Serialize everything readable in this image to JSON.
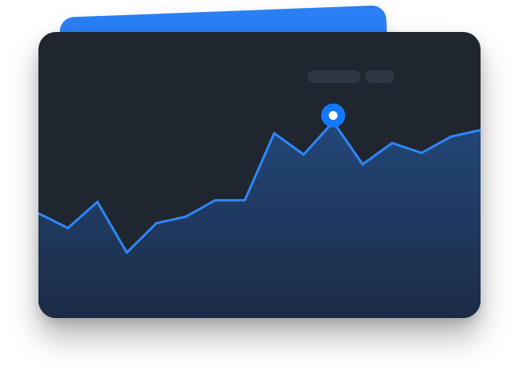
{
  "widget": {
    "placeholder_pills": [
      "",
      ""
    ]
  },
  "colors": {
    "back_card": "#2a7ff5",
    "card_bg": "#1f2630",
    "pill_bg": "#2e3743",
    "line": "#2f86f7",
    "area_top": "#22477a",
    "area_bottom": "#1c2b45",
    "marker_fill": "#1478ff",
    "marker_center": "#ffffff"
  },
  "chart_data": {
    "type": "area",
    "x": [
      0,
      1,
      2,
      3,
      4,
      5,
      6,
      7,
      8,
      9,
      10,
      11,
      12,
      13,
      14,
      15
    ],
    "values": [
      0.44,
      0.35,
      0.51,
      0.2,
      0.38,
      0.42,
      0.52,
      0.52,
      0.93,
      0.8,
      1.0,
      0.74,
      0.87,
      0.81,
      0.91,
      0.95
    ],
    "ylim": [
      0,
      1.1
    ],
    "highlighted_index": 10,
    "title": "",
    "xlabel": "",
    "ylabel": "",
    "grid": false,
    "legend": "none"
  }
}
